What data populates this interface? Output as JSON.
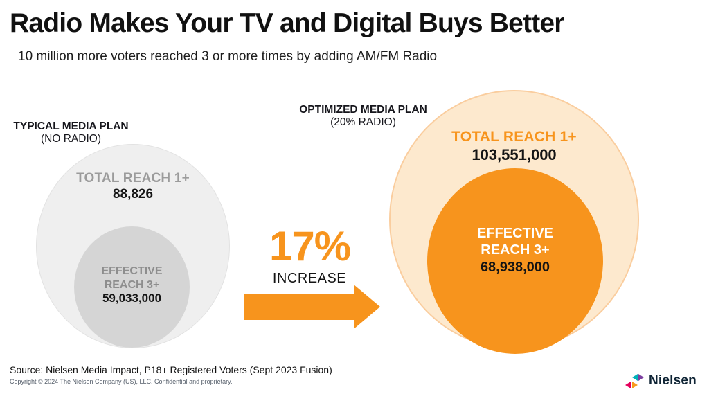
{
  "title": "Radio Makes Your TV and Digital Buys Better",
  "subtitle": "10 million more voters reached 3 or more times by adding AM/FM Radio",
  "typical_plan": {
    "heading": "TYPICAL MEDIA PLAN",
    "subheading": "(NO RADIO)",
    "outer_label": "TOTAL REACH 1+",
    "outer_value": "88,826",
    "inner_label_line1": "EFFECTIVE",
    "inner_label_line2": "REACH 3+",
    "inner_value": "59,033,000"
  },
  "optimized_plan": {
    "heading": "OPTIMIZED MEDIA PLAN",
    "subheading": "(20% RADIO)",
    "outer_label": "TOTAL REACH 1+",
    "outer_value": "103,551,000",
    "inner_label_line1": "EFFECTIVE",
    "inner_label_line2": "REACH 3+",
    "inner_value": "68,938,000"
  },
  "increase": {
    "value": "17%",
    "label": "INCREASE"
  },
  "footer": {
    "source": "Source: Nielsen Media Impact, P18+ Registered Voters (Sept 2023 Fusion)",
    "copyright": "Copyright © 2024 The Nielsen Company (US), LLC. Confidential and proprietary."
  },
  "brand": {
    "wordmark": "Nielsen"
  },
  "colors": {
    "accent_orange": "#F7941D",
    "peach_fill": "#FDE9CE",
    "peach_border": "#FACD9E",
    "light_gray_fill": "#EFEFEF",
    "mid_gray_fill": "#D5D5D5",
    "gray_label": "#9B9B9B",
    "nielsen_navy": "#0F2435",
    "logo_red": "#E4005C",
    "logo_teal": "#00B2B9",
    "logo_purple": "#7C3FA0",
    "logo_orange": "#F89B1C"
  },
  "chart_data": {
    "type": "venn",
    "title": "Radio Makes Your TV and Digital Buys Better",
    "subtitle": "10 million more voters reached 3 or more times by adding AM/FM Radio",
    "series": [
      {
        "name": "TYPICAL MEDIA PLAN (NO RADIO)",
        "total_reach_1plus_display": "88,826",
        "effective_reach_3plus_display": "59,033,000",
        "effective_reach_3plus": 59033000
      },
      {
        "name": "OPTIMIZED MEDIA PLAN (20% RADIO)",
        "total_reach_1plus_display": "103,551,000",
        "total_reach_1plus": 103551000,
        "effective_reach_3plus_display": "68,938,000",
        "effective_reach_3plus": 68938000
      }
    ],
    "increase_pct": 17,
    "annotations": [
      "17% INCREASE"
    ],
    "layout": "two nested proportional circle pairs (effective reach inside total reach) with orange increase arrow between, legend-free, white background"
  }
}
